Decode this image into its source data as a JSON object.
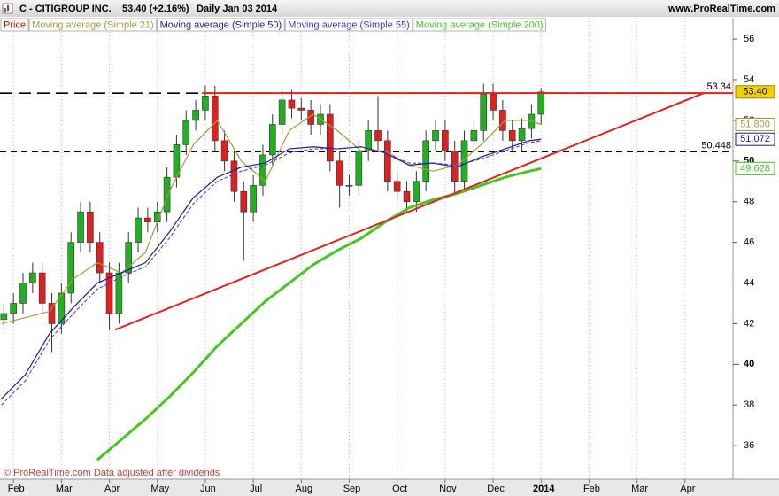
{
  "chart_data": {
    "type": "candlestick",
    "title": "C - CITIGROUP INC.",
    "subtitle": "53.40 (+2.16%)",
    "period": "Daily Jan 03 2014",
    "source": "www.ProRealTime.com",
    "footer": "© ProRealTime.com  Data adjusted after dividends",
    "xlim": [
      -0.28,
      15.0
    ],
    "ylim": [
      34.35,
      57.05
    ],
    "xticks": [
      {
        "value": 0,
        "label": "Feb"
      },
      {
        "value": 1,
        "label": "Mar"
      },
      {
        "value": 2,
        "label": "Apr"
      },
      {
        "value": 3,
        "label": "May"
      },
      {
        "value": 4,
        "label": "Jun"
      },
      {
        "value": 5,
        "label": "Jul"
      },
      {
        "value": 6,
        "label": "Aug"
      },
      {
        "value": 7,
        "label": "Sep"
      },
      {
        "value": 8,
        "label": "Oct"
      },
      {
        "value": 9,
        "label": "Nov"
      },
      {
        "value": 10,
        "label": "Dec"
      },
      {
        "value": 11,
        "label": "2014"
      },
      {
        "value": 12,
        "label": "Feb"
      },
      {
        "value": 13,
        "label": "Mar"
      },
      {
        "value": 14,
        "label": "Apr"
      }
    ],
    "yticks": [
      36,
      38,
      40,
      42,
      44,
      46,
      48,
      50,
      52,
      54,
      56
    ],
    "grid": true,
    "up_color": "#22b022",
    "down_color": "#e02020",
    "candles": {
      "name": "Price",
      "color": "#e00000",
      "tag_fill": "#f2d200",
      "last": {
        "value": 53.4,
        "label": "53.40"
      },
      "x": [
        -0.2,
        0,
        0.2,
        0.4,
        0.6,
        0.8,
        1,
        1.2,
        1.4,
        1.6,
        1.8,
        2,
        2.2,
        2.4,
        2.6,
        2.8,
        3,
        3.2,
        3.4,
        3.6,
        3.8,
        4,
        4.2,
        4.4,
        4.6,
        4.8,
        5,
        5.2,
        5.4,
        5.6,
        5.8,
        6,
        6.2,
        6.4,
        6.6,
        6.8,
        7,
        7.2,
        7.4,
        7.6,
        7.8,
        8,
        8.2,
        8.4,
        8.6,
        8.8,
        9,
        9.2,
        9.4,
        9.6,
        9.8,
        10,
        10.2,
        10.4,
        10.6,
        10.8,
        11
      ],
      "open": [
        42.2,
        42.5,
        43,
        44,
        44.5,
        43,
        42,
        43.5,
        46,
        47.5,
        46,
        44.5,
        42.5,
        44.5,
        46,
        47.2,
        47,
        47.5,
        49.2,
        50.8,
        52,
        52.5,
        53.2,
        51,
        50,
        48.5,
        47.5,
        48.8,
        50.3,
        51.8,
        53,
        52.6,
        52.5,
        51.8,
        52.3,
        50,
        48.8,
        48.8,
        50.5,
        51.5,
        51,
        49,
        48.5,
        48,
        49,
        51,
        51.5,
        50.5,
        49,
        51,
        51.5,
        53.3,
        52.5,
        51.5,
        51,
        51.6,
        52.3
      ],
      "high": [
        43,
        43.5,
        44.5,
        45,
        45,
        43.5,
        44,
        46.5,
        48,
        48,
        46.5,
        45,
        45,
        46.5,
        47.7,
        47.7,
        48,
        49.7,
        51.3,
        52.5,
        53,
        53.7,
        53.7,
        51.5,
        50.5,
        49,
        49.3,
        50.8,
        52.3,
        53.5,
        53.5,
        53.1,
        53,
        52.8,
        52.8,
        50.5,
        49.3,
        51,
        52,
        53.2,
        51.5,
        49.5,
        49,
        49.5,
        51.5,
        52,
        52,
        51,
        51.5,
        52,
        53.8,
        53.8,
        53,
        52,
        52.1,
        52.8,
        53.6
      ],
      "low": [
        41.7,
        42,
        42.5,
        43.5,
        42.5,
        40.6,
        41.5,
        43,
        45.5,
        45.5,
        44,
        41.7,
        42,
        44,
        45.5,
        46.5,
        46.5,
        47,
        48.7,
        50.3,
        51.5,
        52,
        50.5,
        49.5,
        48,
        45.1,
        47,
        48.3,
        49.8,
        51.3,
        52.1,
        52,
        51.3,
        51.3,
        49.5,
        47.7,
        48.3,
        48.3,
        50,
        50.5,
        48.5,
        48,
        47.5,
        47.5,
        48.5,
        50.5,
        50,
        48.4,
        48.5,
        50.5,
        51,
        52,
        51,
        50.5,
        50.5,
        51.1,
        51.8
      ],
      "close": [
        42.5,
        43,
        44,
        44.5,
        43,
        42,
        43.5,
        46,
        47.5,
        46,
        44.5,
        42.5,
        44.5,
        46,
        47.2,
        47,
        47.5,
        49.2,
        50.8,
        52,
        52.5,
        53.2,
        51,
        50,
        48.5,
        47.5,
        48.8,
        50.3,
        51.8,
        53,
        52.6,
        52.5,
        51.8,
        52.3,
        50,
        48.8,
        48.8,
        50.5,
        51.5,
        51,
        49,
        48.5,
        48,
        49,
        51,
        51.5,
        50.5,
        49,
        51,
        51.5,
        53.3,
        52.5,
        51.5,
        51,
        51.6,
        52.3,
        53.4
      ]
    },
    "series": [
      {
        "name": "Moving average (Simple 21)",
        "color": "#a39c3a",
        "dash": false,
        "width": 1.2,
        "last": {
          "value": 51.8,
          "label": "51.800"
        },
        "x": [
          -0.25,
          0.25,
          0.75,
          1.25,
          1.75,
          2.25,
          2.75,
          3.25,
          3.75,
          4.25,
          4.75,
          5.25,
          5.75,
          6.25,
          6.75,
          7.25,
          7.75,
          8.25,
          8.75,
          9.25,
          9.75,
          10.25,
          10.75,
          11
        ],
        "values": [
          42,
          42.3,
          42.6,
          44.2,
          45,
          44.5,
          45.5,
          48.5,
          50.8,
          52,
          50,
          49,
          51.5,
          52.3,
          51.5,
          50.5,
          50.5,
          49.8,
          49.5,
          49.8,
          50.8,
          52,
          52,
          51.8
        ]
      },
      {
        "name": "Moving average (Simple 50)",
        "color": "#1a1a96",
        "dash": false,
        "width": 1.2,
        "last": 51.072,
        "x": [
          -0.25,
          0.25,
          0.75,
          1.25,
          1.75,
          2.25,
          2.75,
          3.25,
          3.75,
          4.25,
          4.75,
          5.25,
          5.75,
          6.25,
          6.75,
          7.25,
          7.75,
          8.25,
          8.75,
          9.25,
          9.75,
          10.25,
          10.75,
          11
        ],
        "values": [
          38.3,
          39.5,
          41.5,
          42.8,
          44,
          44.5,
          45,
          46.5,
          48.2,
          49.2,
          49.7,
          49.9,
          50.6,
          50.7,
          50.6,
          50.7,
          50.4,
          49.8,
          49.9,
          49.7,
          50.2,
          50.6,
          51,
          51.07
        ]
      },
      {
        "name": "Moving average (Simple 55)",
        "color": "#3a3ad2",
        "dash": true,
        "width": 1,
        "x": [
          -0.25,
          0.25,
          0.75,
          1.25,
          1.75,
          2.25,
          2.75,
          3.25,
          3.75,
          4.25,
          4.75,
          5.25,
          5.75,
          6.25,
          6.75,
          7.25,
          7.75,
          8.25,
          8.75,
          9.25,
          9.75,
          10.25,
          10.75,
          11
        ],
        "values": [
          38,
          39.2,
          41.2,
          42.5,
          43.7,
          44.3,
          44.8,
          46.2,
          47.9,
          49,
          49.5,
          49.8,
          50.4,
          50.6,
          50.6,
          50.7,
          50.4,
          49.9,
          49.9,
          49.8,
          50.1,
          50.5,
          50.9,
          51
        ]
      },
      {
        "name": "Moving average (Simple 200)",
        "color": "#44c81e",
        "dash": false,
        "width": 3,
        "last": 49.628,
        "x": [
          -0.25,
          0.25,
          0.75,
          1.25,
          1.75,
          2.25,
          2.75,
          3.25,
          3.75,
          4.25,
          4.75,
          5.25,
          5.75,
          6.25,
          6.75,
          7.25,
          7.75,
          8.25,
          8.75,
          9.25,
          9.75,
          10.25,
          10.75,
          11
        ],
        "values": [
          null,
          null,
          null,
          null,
          35.3,
          36.3,
          37.3,
          38.4,
          39.6,
          40.9,
          42,
          43.1,
          44,
          44.9,
          45.6,
          46.2,
          47,
          47.7,
          48.1,
          48.4,
          48.8,
          49.2,
          49.5,
          49.63
        ]
      }
    ],
    "lines": [
      {
        "color": "#e82020",
        "x": [
          2.12,
          14.39
        ],
        "y": [
          41.7,
          53.34
        ]
      },
      {
        "color": "#e82020",
        "x": [
          3.93,
          15.0
        ],
        "y": [
          53.34,
          53.34
        ]
      }
    ],
    "levels": [
      53.34,
      50.448
    ]
  }
}
